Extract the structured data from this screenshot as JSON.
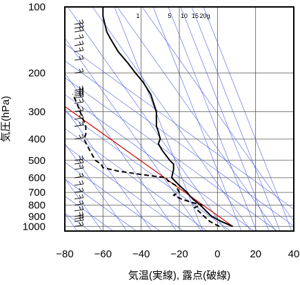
{
  "chart_data": {
    "type": "line",
    "title": "",
    "xlabel": "気温(実線), 露点(破線)",
    "ylabel": "気圧(hPa)",
    "xlim": [
      -80,
      40
    ],
    "ylim": [
      1050,
      100
    ],
    "y_scale": "log",
    "x_ticks": [
      "−80",
      "−60",
      "−40",
      "−20",
      "0",
      "20",
      "40"
    ],
    "x_tick_values": [
      -80,
      -60,
      -40,
      -20,
      0,
      20,
      40
    ],
    "y_ticks": [
      "100",
      "200",
      "300",
      "400",
      "500",
      "600",
      "700",
      "800",
      "900",
      "1000"
    ],
    "y_tick_values": [
      100,
      200,
      300,
      400,
      500,
      600,
      700,
      800,
      900,
      1000
    ],
    "mixing_ratio_labels": [
      "1",
      "5",
      "10",
      "15",
      "20g"
    ],
    "mixing_ratio_values": [
      1,
      5,
      10,
      15,
      20
    ],
    "series": [
      {
        "style": "solid",
        "color": "#000000",
        "points": [
          [
            1000,
            8
          ],
          [
            950,
            2
          ],
          [
            900,
            -3
          ],
          [
            850,
            -6
          ],
          [
            800,
            -9
          ],
          [
            750,
            -13
          ],
          [
            700,
            -16
          ],
          [
            650,
            -20
          ],
          [
            600,
            -24
          ],
          [
            550,
            -23
          ],
          [
            520,
            -23
          ],
          [
            500,
            -25
          ],
          [
            450,
            -29
          ],
          [
            420,
            -31
          ],
          [
            400,
            -30
          ],
          [
            370,
            -31
          ],
          [
            350,
            -32
          ],
          [
            300,
            -32
          ],
          [
            250,
            -35
          ],
          [
            220,
            -39
          ],
          [
            200,
            -43
          ],
          [
            180,
            -47
          ],
          [
            160,
            -52
          ],
          [
            140,
            -56
          ],
          [
            130,
            -58
          ],
          [
            120,
            -59
          ],
          [
            110,
            -60
          ],
          [
            100,
            -60
          ]
        ]
      },
      {
        "style": "dashed",
        "color": "#000000",
        "points": [
          [
            1000,
            1
          ],
          [
            950,
            -4
          ],
          [
            900,
            -7
          ],
          [
            850,
            -10
          ],
          [
            820,
            -12
          ],
          [
            800,
            -8
          ],
          [
            780,
            -13
          ],
          [
            750,
            -19
          ],
          [
            720,
            -23
          ],
          [
            700,
            -20
          ],
          [
            650,
            -22
          ],
          [
            620,
            -26
          ],
          [
            600,
            -27
          ],
          [
            580,
            -40
          ],
          [
            560,
            -52
          ],
          [
            540,
            -60
          ],
          [
            520,
            -61
          ],
          [
            500,
            -64
          ],
          [
            450,
            -67
          ],
          [
            400,
            -70
          ],
          [
            380,
            -69
          ],
          [
            350,
            -69
          ],
          [
            300,
            -72
          ],
          [
            270,
            -74
          ],
          [
            250,
            -76
          ]
        ]
      }
    ],
    "reference_line": {
      "color": "#cc0000",
      "from": [
        1000,
        8
      ],
      "to": [
        250,
        -89
      ]
    },
    "winds_column_pressures": [
      120,
      125,
      130,
      140,
      150,
      160,
      175,
      200,
      240,
      245,
      250,
      255,
      260,
      275,
      300,
      325,
      350,
      400,
      500,
      520,
      550,
      600,
      650,
      700,
      750,
      800,
      850,
      900,
      925,
      950,
      1000
    ],
    "grid": true
  }
}
